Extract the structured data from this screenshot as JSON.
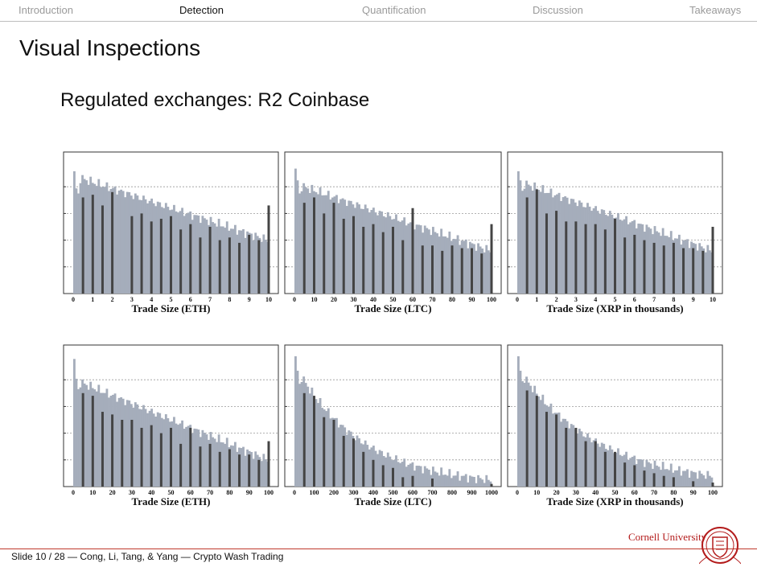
{
  "nav": {
    "items": [
      "Introduction",
      "Detection",
      "Quantification",
      "Discussion",
      "Takeaways"
    ],
    "active_index": 1
  },
  "title": "Visual Inspections",
  "subtitle": "Regulated exchanges: R2 Coinbase",
  "footer": {
    "text": "Slide 10 / 28  —  Cong, Li, Tang, & Yang  —  Crypto Wash Trading",
    "logo_text": "Cornell University"
  },
  "colors": {
    "bar_light": "#a5adbb",
    "bar_dark": "#444444",
    "footer_rule": "#c0392b",
    "logo": "#b31b1b"
  },
  "chart_data": [
    {
      "type": "bar",
      "xlabel": "Trade Size (ETH)",
      "xlim": [
        0,
        10
      ],
      "ylim": [
        0,
        5
      ],
      "ticks": [
        "0",
        "1",
        "2",
        "3",
        "4",
        "5",
        "6",
        "7",
        "8",
        "9",
        "10"
      ],
      "decay": "linear",
      "base": [
        4.4,
        2.0
      ],
      "start_heights": [
        4.5,
        3.9,
        3.7
      ],
      "rounds": [
        [
          0.5,
          3.6
        ],
        [
          1,
          3.7
        ],
        [
          1.5,
          3.3
        ],
        [
          2,
          3.8
        ],
        [
          3,
          2.9
        ],
        [
          3.5,
          3.0
        ],
        [
          4,
          2.7
        ],
        [
          4.5,
          2.8
        ],
        [
          5,
          2.9
        ],
        [
          5.5,
          2.4
        ],
        [
          6,
          2.6
        ],
        [
          6.5,
          2.1
        ],
        [
          7,
          2.5
        ],
        [
          7.5,
          2.0
        ],
        [
          8,
          2.1
        ],
        [
          8.5,
          1.9
        ],
        [
          9,
          2.2
        ],
        [
          9.5,
          2.0
        ],
        [
          10,
          3.3
        ]
      ]
    },
    {
      "type": "bar",
      "xlabel": "Trade Size (LTC)",
      "xlim": [
        0,
        100
      ],
      "ylim": [
        0,
        5
      ],
      "ticks": [
        "0",
        "10",
        "20",
        "30",
        "40",
        "50",
        "60",
        "70",
        "80",
        "90",
        "100"
      ],
      "decay": "linear",
      "base": [
        4.1,
        1.6
      ],
      "start_heights": [
        4.6,
        4.2,
        3.7
      ],
      "rounds": [
        [
          5,
          3.4
        ],
        [
          10,
          3.6
        ],
        [
          15,
          3.0
        ],
        [
          20,
          3.4
        ],
        [
          25,
          2.8
        ],
        [
          30,
          2.9
        ],
        [
          35,
          2.5
        ],
        [
          40,
          2.6
        ],
        [
          45,
          2.3
        ],
        [
          50,
          2.5
        ],
        [
          55,
          2.0
        ],
        [
          60,
          3.2
        ],
        [
          65,
          1.8
        ],
        [
          70,
          1.8
        ],
        [
          75,
          1.6
        ],
        [
          80,
          1.8
        ],
        [
          85,
          1.7
        ],
        [
          90,
          1.7
        ],
        [
          95,
          1.5
        ],
        [
          100,
          2.6
        ]
      ]
    },
    {
      "type": "bar",
      "xlabel": "Trade Size (XRP in thousands)",
      "xlim": [
        0,
        10
      ],
      "ylim": [
        0,
        5
      ],
      "ticks": [
        "0",
        "1",
        "2",
        "3",
        "4",
        "5",
        "6",
        "7",
        "8",
        "9",
        "10"
      ],
      "decay": "linear",
      "base": [
        4.2,
        1.6
      ],
      "start_heights": [
        4.5,
        4.2,
        3.8
      ],
      "rounds": [
        [
          0.5,
          3.6
        ],
        [
          1,
          3.9
        ],
        [
          1.5,
          3.0
        ],
        [
          2,
          3.1
        ],
        [
          2.5,
          2.7
        ],
        [
          3,
          2.7
        ],
        [
          3.5,
          2.6
        ],
        [
          4,
          2.6
        ],
        [
          4.5,
          2.4
        ],
        [
          5,
          2.8
        ],
        [
          5.5,
          2.1
        ],
        [
          6,
          2.2
        ],
        [
          6.5,
          2.0
        ],
        [
          7,
          1.9
        ],
        [
          7.5,
          1.8
        ],
        [
          8,
          1.9
        ],
        [
          8.5,
          1.7
        ],
        [
          9,
          1.7
        ],
        [
          9.5,
          1.6
        ],
        [
          10,
          2.5
        ]
      ]
    },
    {
      "type": "bar",
      "xlabel": "Trade Size (ETH)",
      "xlim": [
        0,
        100
      ],
      "ylim": [
        0,
        5
      ],
      "ticks": [
        "0",
        "10",
        "20",
        "30",
        "40",
        "50",
        "60",
        "70",
        "80",
        "90",
        "100"
      ],
      "decay": "linear",
      "base": [
        4.0,
        1.0
      ],
      "start_heights": [
        4.7,
        4.0,
        3.6
      ],
      "rounds": [
        [
          5,
          3.5
        ],
        [
          10,
          3.4
        ],
        [
          15,
          2.8
        ],
        [
          20,
          2.7
        ],
        [
          25,
          2.5
        ],
        [
          30,
          2.5
        ],
        [
          35,
          2.2
        ],
        [
          40,
          2.3
        ],
        [
          45,
          2.0
        ],
        [
          50,
          2.2
        ],
        [
          55,
          1.6
        ],
        [
          60,
          2.2
        ],
        [
          65,
          1.5
        ],
        [
          70,
          1.6
        ],
        [
          75,
          1.3
        ],
        [
          80,
          1.4
        ],
        [
          85,
          1.2
        ],
        [
          90,
          1.2
        ],
        [
          95,
          1.0
        ],
        [
          100,
          1.7
        ]
      ]
    },
    {
      "type": "bar",
      "xlabel": "Trade Size (LTC)",
      "xlim": [
        0,
        1000
      ],
      "ylim": [
        0,
        5
      ],
      "ticks": [
        "0",
        "100",
        "200",
        "300",
        "400",
        "500",
        "600",
        "700",
        "800",
        "900",
        "1000"
      ],
      "decay": "exp",
      "base": [
        4.5,
        0.25
      ],
      "start_heights": [
        4.8,
        4.3,
        3.8
      ],
      "rounds": [
        [
          50,
          3.5
        ],
        [
          100,
          3.4
        ],
        [
          150,
          2.6
        ],
        [
          200,
          2.5
        ],
        [
          250,
          1.9
        ],
        [
          300,
          1.8
        ],
        [
          350,
          1.3
        ],
        [
          400,
          1.0
        ],
        [
          450,
          0.8
        ],
        [
          500,
          0.7
        ],
        [
          550,
          0.35
        ],
        [
          600,
          0.4
        ],
        [
          700,
          0.3
        ],
        [
          1000,
          0.1
        ]
      ]
    },
    {
      "type": "bar",
      "xlabel": "Trade Size (XRP in thousands)",
      "xlim": [
        0,
        100
      ],
      "ylim": [
        0,
        5
      ],
      "ticks": [
        "0",
        "10",
        "20",
        "30",
        "40",
        "50",
        "60",
        "70",
        "80",
        "90",
        "100"
      ],
      "decay": "exp",
      "base": [
        4.4,
        0.4
      ],
      "start_heights": [
        4.8,
        4.3,
        3.9
      ],
      "rounds": [
        [
          5,
          3.6
        ],
        [
          10,
          3.4
        ],
        [
          15,
          2.8
        ],
        [
          20,
          2.7
        ],
        [
          25,
          2.2
        ],
        [
          30,
          2.2
        ],
        [
          35,
          1.7
        ],
        [
          40,
          1.7
        ],
        [
          45,
          1.3
        ],
        [
          50,
          1.3
        ],
        [
          55,
          0.9
        ],
        [
          60,
          0.8
        ],
        [
          65,
          0.6
        ],
        [
          70,
          0.5
        ],
        [
          75,
          0.4
        ],
        [
          80,
          0.35
        ],
        [
          90,
          0.2
        ],
        [
          100,
          0.15
        ]
      ]
    }
  ]
}
